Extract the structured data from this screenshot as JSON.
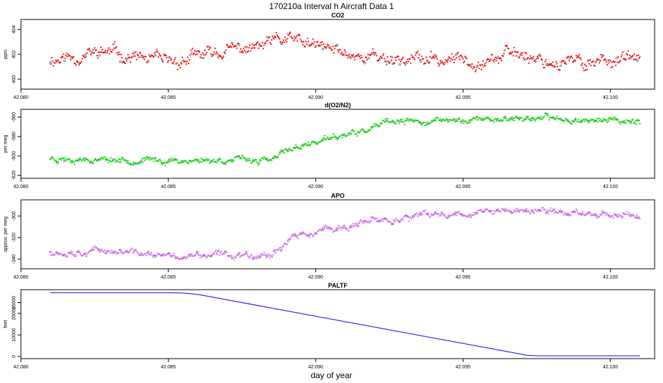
{
  "figure": {
    "title": "170210a   Interval h Aircraft Data 1",
    "xlabel": "day of year"
  },
  "chart_data": [
    {
      "type": "scatter",
      "title": "CO2",
      "ylabel": "ppm",
      "color": "#ff0000",
      "xlim": [
        42.08,
        42.1015
      ],
      "ylim": [
        399.2,
        404.8
      ],
      "xticks": [
        "42.080",
        "42.085",
        "42.090",
        "42.095",
        "42.100"
      ],
      "yticks": [
        "400",
        "402",
        "404"
      ],
      "x_range": [
        42.081,
        42.101
      ],
      "segments": [
        {
          "x": 42.081,
          "y": 401.6
        },
        {
          "x": 42.083,
          "y": 402.2
        },
        {
          "x": 42.084,
          "y": 401.7
        },
        {
          "x": 42.085,
          "y": 401.2
        },
        {
          "x": 42.086,
          "y": 401.8
        },
        {
          "x": 42.087,
          "y": 402.3
        },
        {
          "x": 42.088,
          "y": 402.5
        },
        {
          "x": 42.089,
          "y": 403.2
        },
        {
          "x": 42.09,
          "y": 402.6
        },
        {
          "x": 42.091,
          "y": 402.1
        },
        {
          "x": 42.092,
          "y": 401.8
        },
        {
          "x": 42.094,
          "y": 401.5
        },
        {
          "x": 42.096,
          "y": 401.7
        },
        {
          "x": 42.097,
          "y": 402.1
        },
        {
          "x": 42.098,
          "y": 401.4
        },
        {
          "x": 42.099,
          "y": 401.3
        },
        {
          "x": 42.1,
          "y": 401.7
        },
        {
          "x": 42.101,
          "y": 401.5
        }
      ],
      "noise": 0.6,
      "seed": 11
    },
    {
      "type": "scatter",
      "title": "d(O2/N2)",
      "ylabel": "per meg",
      "color": "#00e000",
      "xlim": [
        42.08,
        42.1015
      ],
      "ylim": [
        -623,
        -552
      ],
      "xticks": [
        "42.080",
        "42.085",
        "42.090",
        "42.095",
        "42.100"
      ],
      "yticks": [
        "-620",
        "-600",
        "-580",
        "-560"
      ],
      "x_range": [
        42.081,
        42.101
      ],
      "segments": [
        {
          "x": 42.081,
          "y": -602
        },
        {
          "x": 42.085,
          "y": -605
        },
        {
          "x": 42.087,
          "y": -604
        },
        {
          "x": 42.0885,
          "y": -605
        },
        {
          "x": 42.0892,
          "y": -592
        },
        {
          "x": 42.0905,
          "y": -582
        },
        {
          "x": 42.0915,
          "y": -576
        },
        {
          "x": 42.0925,
          "y": -566
        },
        {
          "x": 42.095,
          "y": -563
        },
        {
          "x": 42.097,
          "y": -561
        },
        {
          "x": 42.101,
          "y": -564
        }
      ],
      "noise": 3.5,
      "seed": 23
    },
    {
      "type": "scatter",
      "title": "APO",
      "ylabel": "approx. per meg",
      "color": "#e066ff",
      "xlim": [
        42.08,
        42.1015
      ],
      "ylim": [
        -349,
        -285
      ],
      "xticks": [
        "42.080",
        "42.085",
        "42.090",
        "42.095",
        "42.100"
      ],
      "yticks": [
        "-340",
        "-320",
        "-300"
      ],
      "x_range": [
        42.081,
        42.101
      ],
      "segments": [
        {
          "x": 42.081,
          "y": -333
        },
        {
          "x": 42.083,
          "y": -332
        },
        {
          "x": 42.085,
          "y": -338
        },
        {
          "x": 42.0885,
          "y": -335
        },
        {
          "x": 42.0892,
          "y": -320
        },
        {
          "x": 42.0905,
          "y": -313
        },
        {
          "x": 42.0925,
          "y": -303
        },
        {
          "x": 42.095,
          "y": -297
        },
        {
          "x": 42.097,
          "y": -295
        },
        {
          "x": 42.101,
          "y": -299
        }
      ],
      "noise": 3.5,
      "seed": 37
    },
    {
      "type": "line",
      "title": "PALTF",
      "ylabel": "feet",
      "color": "#0000ff",
      "xlim": [
        42.08,
        42.1015
      ],
      "ylim": [
        -1000,
        31000
      ],
      "xticks": [
        "42.080",
        "42.085",
        "42.090",
        "42.095",
        "42.100"
      ],
      "yticks": [
        "0",
        "10000",
        "20000",
        "25000"
      ],
      "x": [
        42.081,
        42.085,
        42.0855,
        42.086,
        42.0972,
        42.0975,
        42.101
      ],
      "y": [
        29600,
        29600,
        29400,
        28800,
        500,
        300,
        300
      ]
    }
  ]
}
